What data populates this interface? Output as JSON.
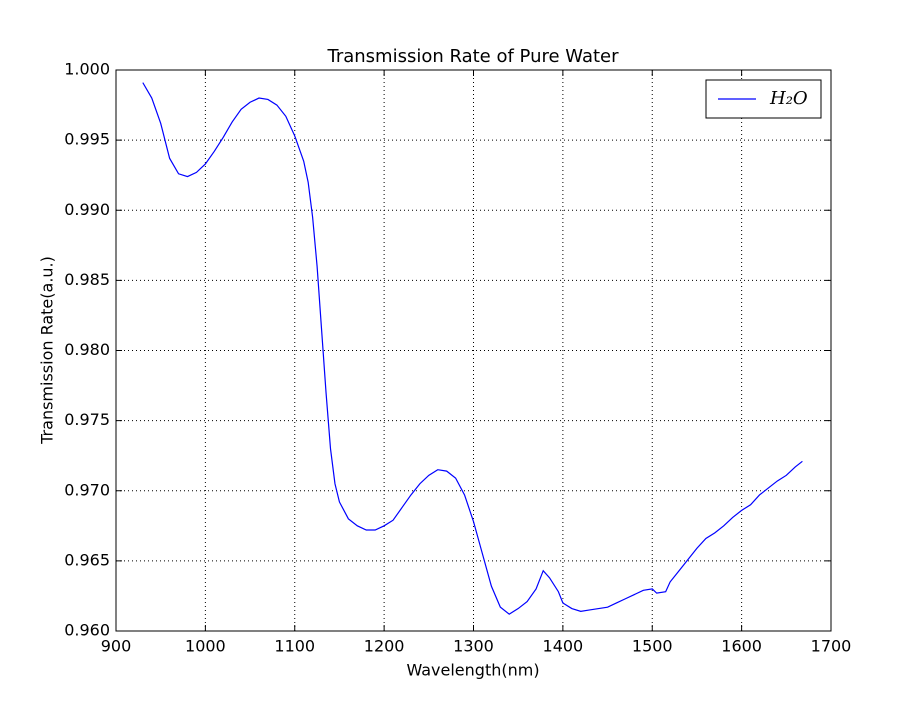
{
  "chart_data": {
    "type": "line",
    "title": "Transmission Rate of Pure Water",
    "x_label": "Wavelength(nm)",
    "y_label": "Transmission Rate(a.u.)",
    "x": [
      930,
      940,
      950,
      960,
      970,
      980,
      990,
      1000,
      1010,
      1020,
      1030,
      1040,
      1050,
      1060,
      1070,
      1080,
      1090,
      1100,
      1110,
      1115,
      1120,
      1125,
      1130,
      1135,
      1140,
      1145,
      1150,
      1160,
      1170,
      1180,
      1190,
      1200,
      1210,
      1220,
      1230,
      1240,
      1250,
      1260,
      1270,
      1280,
      1290,
      1300,
      1310,
      1320,
      1330,
      1340,
      1350,
      1360,
      1370,
      1378,
      1385,
      1395,
      1400,
      1410,
      1420,
      1430,
      1440,
      1450,
      1460,
      1470,
      1480,
      1490,
      1500,
      1505,
      1515,
      1520,
      1530,
      1540,
      1550,
      1560,
      1570,
      1580,
      1590,
      1600,
      1610,
      1620,
      1630,
      1640,
      1650,
      1660,
      1668
    ],
    "series": [
      {
        "name": "H₂O",
        "color": "#0000ff",
        "values": [
          0.9991,
          0.998,
          0.9962,
          0.9937,
          0.9926,
          0.9924,
          0.9927,
          0.9933,
          0.9942,
          0.9952,
          0.9963,
          0.9972,
          0.9977,
          0.998,
          0.9979,
          0.9975,
          0.9967,
          0.9953,
          0.9935,
          0.992,
          0.9895,
          0.986,
          0.9815,
          0.977,
          0.973,
          0.9705,
          0.9692,
          0.968,
          0.9675,
          0.9672,
          0.9672,
          0.9675,
          0.9679,
          0.9688,
          0.9697,
          0.9705,
          0.9711,
          0.9715,
          0.9714,
          0.9709,
          0.9697,
          0.9678,
          0.9655,
          0.9632,
          0.9617,
          0.9612,
          0.9616,
          0.9621,
          0.963,
          0.9643,
          0.9638,
          0.9628,
          0.962,
          0.9616,
          0.9614,
          0.9615,
          0.9616,
          0.9617,
          0.962,
          0.9623,
          0.9626,
          0.9629,
          0.963,
          0.9627,
          0.9628,
          0.9635,
          0.9643,
          0.9651,
          0.9659,
          0.9666,
          0.967,
          0.9675,
          0.9681,
          0.9686,
          0.969,
          0.9697,
          0.9702,
          0.9707,
          0.9711,
          0.9717,
          0.9721
        ]
      }
    ],
    "xlim": [
      900,
      1700
    ],
    "xticks": [
      900,
      1000,
      1100,
      1200,
      1300,
      1400,
      1500,
      1600,
      1700
    ],
    "ylim": [
      0.96,
      1.0
    ],
    "yticks": [
      {
        "value": 0.96,
        "label": "0.960"
      },
      0.965,
      {
        "value": 0.97,
        "label": "0.970"
      },
      0.975,
      {
        "value": 0.98,
        "label": "0.980"
      },
      0.985,
      {
        "value": 0.99,
        "label": "0.990"
      },
      0.995,
      {
        "value": 1,
        "label": "1.000"
      }
    ],
    "grid": true,
    "legend": "upper right"
  }
}
